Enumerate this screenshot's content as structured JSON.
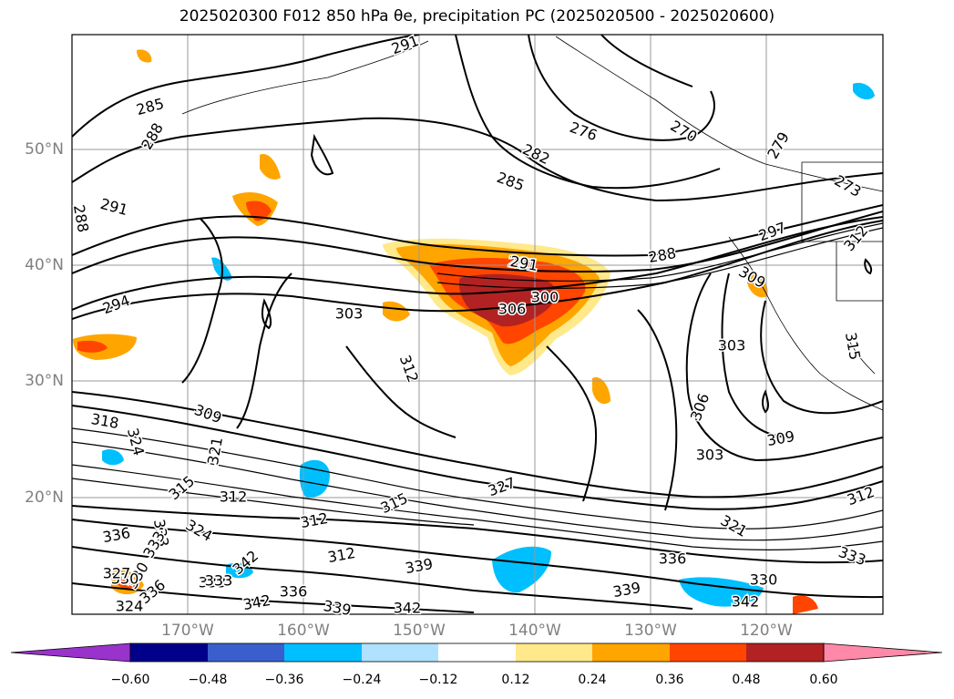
{
  "title": "2025020300 F012 850 hPa θe, precipitation PC (2025020500 - 2025020600)",
  "map": {
    "lat_labels": [
      "50°N",
      "40°N",
      "30°N",
      "20°N"
    ],
    "lon_labels": [
      "170°W",
      "160°W",
      "150°W",
      "140°W",
      "130°W",
      "120°W"
    ],
    "contour_labels": [
      "291",
      "285",
      "288",
      "276",
      "270",
      "282",
      "285",
      "279",
      "273",
      "291",
      "288",
      "288",
      "291",
      "297",
      "312",
      "294",
      "303",
      "291",
      "300",
      "306",
      "309",
      "303",
      "315",
      "312",
      "318",
      "309",
      "324",
      "321",
      "306",
      "303",
      "309",
      "312",
      "315",
      "312",
      "315",
      "327",
      "312",
      "321",
      "324",
      "336",
      "333",
      "312",
      "333",
      "339",
      "336",
      "330",
      "333",
      "342",
      "339",
      "342",
      "336",
      "339",
      "342",
      "336",
      "330",
      "342",
      "333",
      "333",
      "330",
      "327",
      "324"
    ]
  },
  "colorbar": {
    "ticks": [
      "−0.60",
      "−0.48",
      "−0.36",
      "−0.24",
      "−0.12",
      "0.12",
      "0.24",
      "0.36",
      "0.48",
      "0.60"
    ],
    "colors": [
      "#9933cc",
      "#00008b",
      "#3a5fcd",
      "#00bfff",
      "#b0e2ff",
      "#ffffff",
      "#ffe98a",
      "#ffa500",
      "#ff4500",
      "#b22222",
      "#ff89a8"
    ]
  }
}
